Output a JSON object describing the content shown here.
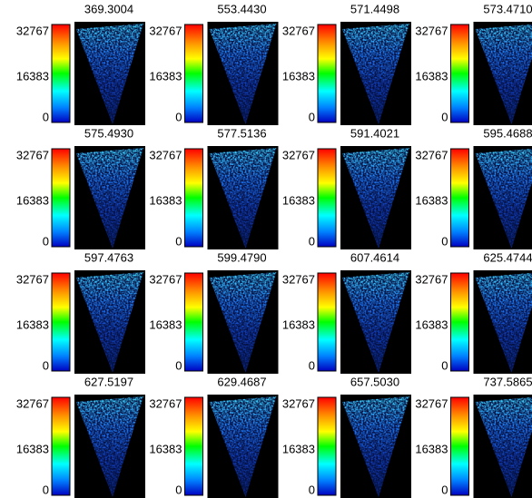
{
  "panels": [
    {
      "title": "369.3004",
      "ticks": [
        "32767",
        "16383",
        "0"
      ]
    },
    {
      "title": "553.4430",
      "ticks": [
        "32767",
        "16383",
        "0"
      ]
    },
    {
      "title": "571.4498",
      "ticks": [
        "32767",
        "16383",
        "0"
      ]
    },
    {
      "title": "573.4710",
      "ticks": [
        "32767",
        "16383",
        "0"
      ]
    },
    {
      "title": "575.4930",
      "ticks": [
        "32767",
        "16383",
        "0"
      ]
    },
    {
      "title": "577.5136",
      "ticks": [
        "32767",
        "16383",
        "0"
      ]
    },
    {
      "title": "591.4021",
      "ticks": [
        "32767",
        "16383",
        "0"
      ]
    },
    {
      "title": "595.4688",
      "ticks": [
        "32767",
        "16383",
        "0"
      ]
    },
    {
      "title": "597.4763",
      "ticks": [
        "32767",
        "16383",
        "0"
      ]
    },
    {
      "title": "599.4790",
      "ticks": [
        "32767",
        "16383",
        "0"
      ]
    },
    {
      "title": "607.4614",
      "ticks": [
        "32767",
        "16383",
        "0"
      ]
    },
    {
      "title": "625.4744",
      "ticks": [
        "32767",
        "16383",
        "0"
      ]
    },
    {
      "title": "627.5197",
      "ticks": [
        "32767",
        "16383",
        "0"
      ]
    },
    {
      "title": "629.4687",
      "ticks": [
        "32767",
        "16383",
        "0"
      ]
    },
    {
      "title": "657.5030",
      "ticks": [
        "32767",
        "16383",
        "0"
      ]
    },
    {
      "title": "737.5865",
      "ticks": [
        "32767",
        "16383",
        "0"
      ]
    }
  ]
}
